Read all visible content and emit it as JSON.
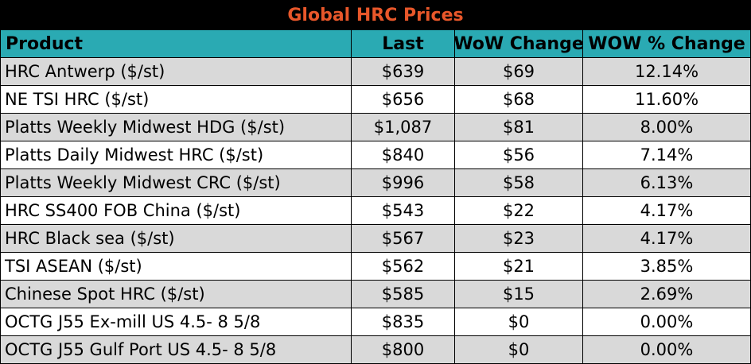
{
  "title": "Global HRC Prices",
  "columns": [
    "Product",
    "Last",
    "WoW Change",
    "WOW % Change"
  ],
  "rows": [
    [
      "HRC Antwerp ($/st)",
      "$639",
      "$69",
      "12.14%"
    ],
    [
      "NE TSI HRC ($/st)",
      "$656",
      "$68",
      "11.60%"
    ],
    [
      "Platts Weekly Midwest HDG ($/st)",
      "$1,087",
      "$81",
      "8.00%"
    ],
    [
      "Platts Daily Midwest HRC ($/st)",
      "$840",
      "$56",
      "7.14%"
    ],
    [
      "Platts Weekly Midwest CRC ($/st)",
      "$996",
      "$58",
      "6.13%"
    ],
    [
      "HRC SS400 FOB China ($/st)",
      "$543",
      "$22",
      "4.17%"
    ],
    [
      "HRC Black sea ($/st)",
      "$567",
      "$23",
      "4.17%"
    ],
    [
      "TSI ASEAN ($/st)",
      "$562",
      "$21",
      "3.85%"
    ],
    [
      "Chinese Spot HRC ($/st)",
      "$585",
      "$15",
      "2.69%"
    ],
    [
      "OCTG J55 Ex-mill US 4.5- 8 5/8",
      "$835",
      "$0",
      "0.00%"
    ],
    [
      "OCTG J55 Gulf Port US 4.5- 8 5/8",
      "$800",
      "$0",
      "0.00%"
    ]
  ],
  "colors": {
    "title_bg": "#000000",
    "title_text": "#e8572a",
    "header_bg": "#2aaab3",
    "row_alt": "#d9d9d9",
    "row": "#ffffff"
  }
}
